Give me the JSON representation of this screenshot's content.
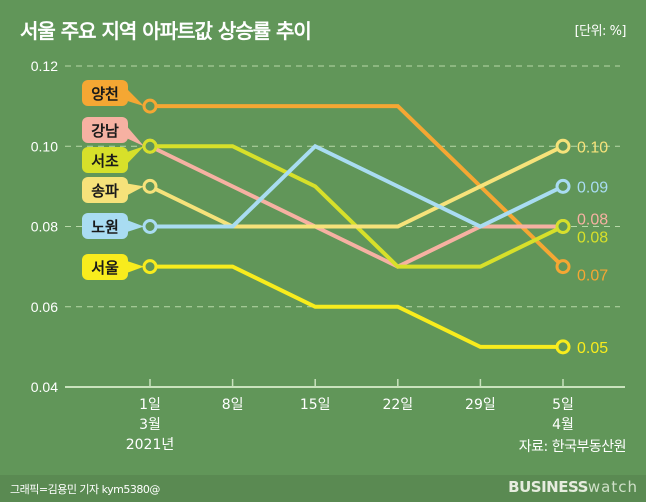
{
  "header": {
    "title": "서울 주요 지역 아파트값 상승률 추이",
    "unit": "[단위: %]"
  },
  "footer": {
    "source": "자료: 한국부동산원",
    "credit": "그래픽=김용민 기자 kym5380@",
    "brand_bold": "BUSINESS",
    "brand_light": "watch"
  },
  "chart_data": {
    "type": "line",
    "title": "서울 주요 지역 아파트값 상승률 추이",
    "xlabel": "",
    "ylabel": "",
    "unit": "%",
    "x": [
      "1일",
      "8일",
      "15일",
      "22일",
      "29일",
      "5일"
    ],
    "x_sublabels": [
      [
        "3월",
        "2021년"
      ],
      [],
      [],
      [],
      [],
      [
        "4월"
      ]
    ],
    "yticks": [
      "0.04",
      "0.06",
      "0.08",
      "0.10",
      "0.12"
    ],
    "ylim": [
      0.04,
      0.12
    ],
    "grid": "dashed-horizontal",
    "series": [
      {
        "name": "양천",
        "color": "#f5a733",
        "values": [
          0.11,
          0.11,
          0.11,
          0.11,
          0.09,
          0.07
        ],
        "end_label": "0.07"
      },
      {
        "name": "강남",
        "color": "#f6b1a2",
        "values": [
          0.1,
          0.09,
          0.08,
          0.07,
          0.08,
          0.08
        ],
        "end_label": "0.08"
      },
      {
        "name": "서초",
        "color": "#d7e02a",
        "values": [
          0.1,
          0.1,
          0.09,
          0.07,
          0.07,
          0.08
        ],
        "end_label": "0.08"
      },
      {
        "name": "송파",
        "color": "#f6e27a",
        "values": [
          0.09,
          0.08,
          0.08,
          0.08,
          0.09,
          0.1
        ],
        "end_label": "0.10"
      },
      {
        "name": "노원",
        "color": "#a9dcf2",
        "values": [
          0.08,
          0.08,
          0.1,
          0.09,
          0.08,
          0.09
        ],
        "end_label": "0.09"
      },
      {
        "name": "서울",
        "color": "#f8ec1d",
        "values": [
          0.07,
          0.07,
          0.06,
          0.06,
          0.05,
          0.05
        ],
        "end_label": "0.05"
      }
    ],
    "legend": "left, callout labels at first point"
  }
}
